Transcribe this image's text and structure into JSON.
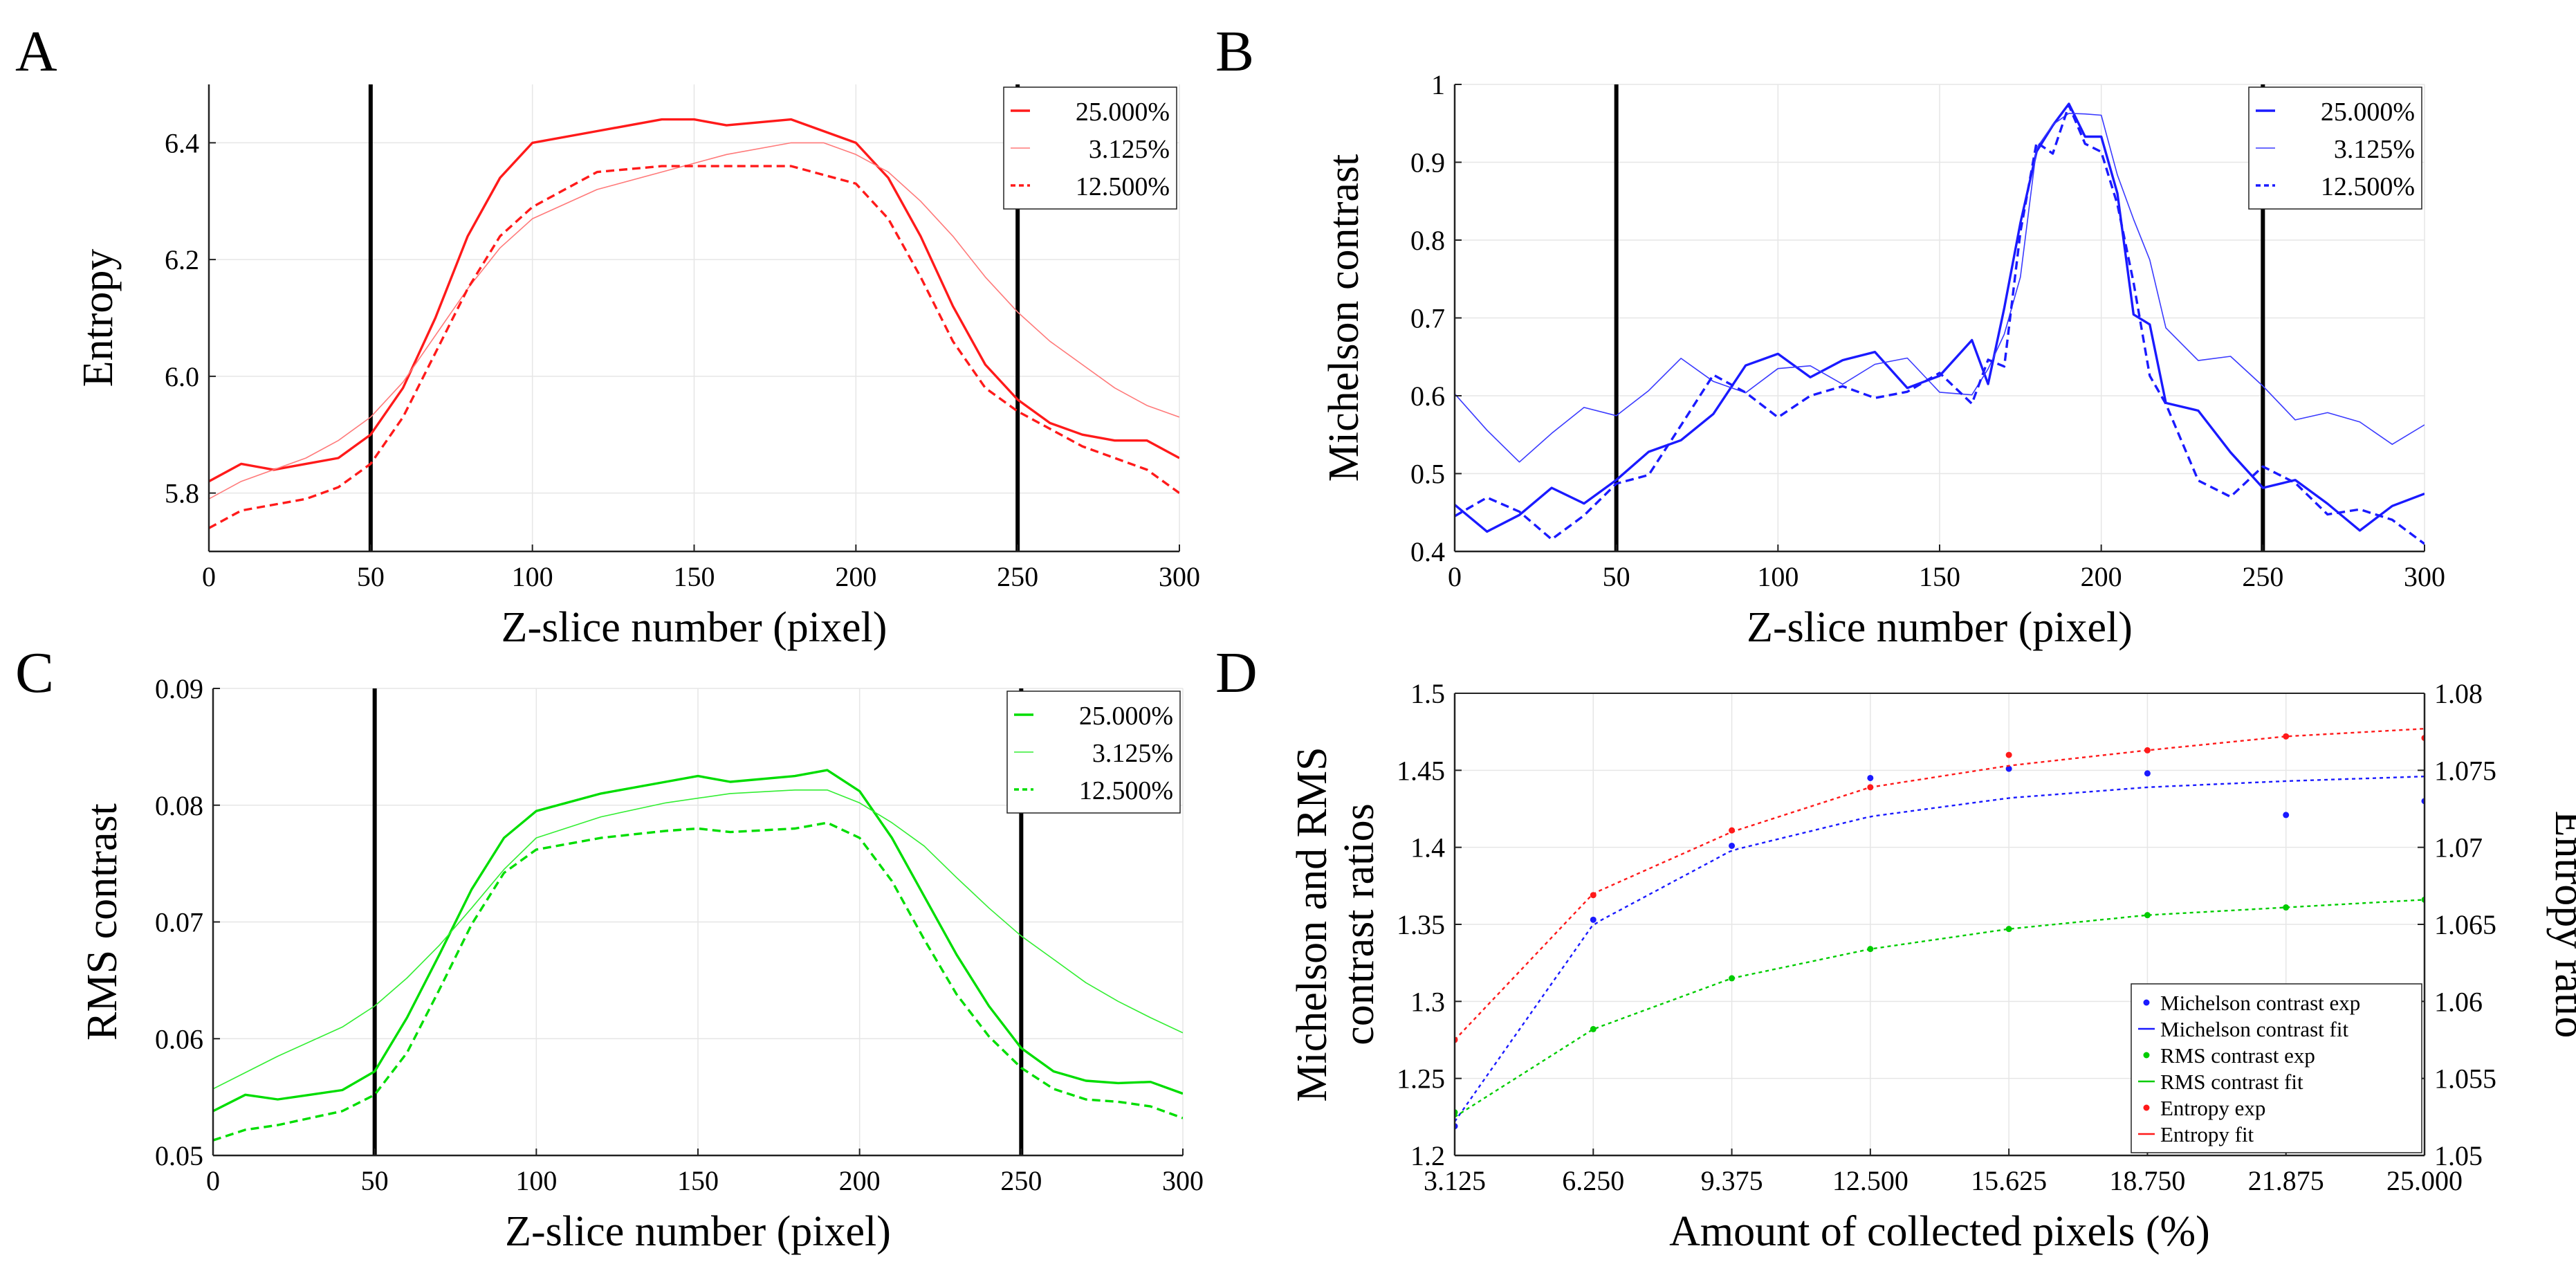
{
  "chart_data": [
    {
      "panel": "A",
      "type": "line",
      "xlabel": "Z-slice number (pixel)",
      "ylabel": "Entropy",
      "xlim": [
        0,
        300
      ],
      "ylim": [
        5.7,
        6.5
      ],
      "xticks": [
        0,
        50,
        100,
        150,
        200,
        250,
        300
      ],
      "yticks": [
        5.8,
        6.0,
        6.2,
        6.4
      ],
      "ytick_labels": [
        "5.8",
        "6.0",
        "6.2",
        "6.4"
      ],
      "vlines": [
        50,
        250
      ],
      "grid": true,
      "legend_position": "top-right",
      "series": [
        {
          "name": "25.000%",
          "color": "#ff1a1a",
          "style": "solid",
          "x": [
            0,
            10,
            20,
            30,
            40,
            50,
            60,
            70,
            80,
            90,
            100,
            120,
            140,
            150,
            160,
            180,
            200,
            210,
            220,
            230,
            240,
            250,
            260,
            270,
            280,
            290,
            300
          ],
          "values": [
            5.82,
            5.85,
            5.84,
            5.85,
            5.86,
            5.9,
            5.98,
            6.1,
            6.24,
            6.34,
            6.4,
            6.42,
            6.44,
            6.44,
            6.43,
            6.44,
            6.4,
            6.34,
            6.24,
            6.12,
            6.02,
            5.96,
            5.92,
            5.9,
            5.89,
            5.89,
            5.86
          ]
        },
        {
          "name": "3.125%",
          "color": "#ff7a7a",
          "style": "thin",
          "x": [
            0,
            10,
            20,
            30,
            40,
            50,
            60,
            70,
            80,
            90,
            100,
            120,
            140,
            160,
            180,
            190,
            200,
            210,
            220,
            230,
            240,
            250,
            260,
            270,
            280,
            290,
            300
          ],
          "values": [
            5.79,
            5.82,
            5.84,
            5.86,
            5.89,
            5.93,
            5.99,
            6.07,
            6.15,
            6.22,
            6.27,
            6.32,
            6.35,
            6.38,
            6.4,
            6.4,
            6.38,
            6.35,
            6.3,
            6.24,
            6.17,
            6.11,
            6.06,
            6.02,
            5.98,
            5.95,
            5.93
          ]
        },
        {
          "name": "12.500%",
          "color": "#ff1a1a",
          "style": "dashed",
          "x": [
            0,
            10,
            20,
            30,
            40,
            50,
            60,
            70,
            80,
            90,
            100,
            110,
            120,
            140,
            160,
            180,
            200,
            210,
            220,
            230,
            240,
            250,
            260,
            270,
            280,
            290,
            300
          ],
          "values": [
            5.74,
            5.77,
            5.78,
            5.79,
            5.81,
            5.85,
            5.93,
            6.04,
            6.15,
            6.24,
            6.29,
            6.32,
            6.35,
            6.36,
            6.36,
            6.36,
            6.33,
            6.27,
            6.17,
            6.06,
            5.98,
            5.94,
            5.91,
            5.88,
            5.86,
            5.84,
            5.8
          ]
        }
      ]
    },
    {
      "panel": "B",
      "type": "line",
      "xlabel": "Z-slice number (pixel)",
      "ylabel": "Michelson contrast",
      "xlim": [
        0,
        300
      ],
      "ylim": [
        0.4,
        1.0
      ],
      "xticks": [
        0,
        50,
        100,
        150,
        200,
        250,
        300
      ],
      "yticks": [
        0.4,
        0.5,
        0.6,
        0.7,
        0.8,
        0.9,
        1.0
      ],
      "ytick_labels": [
        "0.4",
        "0.5",
        "0.6",
        "0.7",
        "0.8",
        "0.9",
        "1"
      ],
      "vlines": [
        50,
        250
      ],
      "grid": true,
      "legend_position": "top-right",
      "series": [
        {
          "name": "25.000%",
          "color": "#1a1aff",
          "style": "solid",
          "x": [
            0,
            10,
            20,
            30,
            40,
            50,
            60,
            70,
            80,
            90,
            100,
            110,
            120,
            130,
            140,
            150,
            160,
            165,
            170,
            175,
            180,
            185,
            190,
            195,
            200,
            205,
            210,
            215,
            220,
            230,
            240,
            250,
            260,
            270,
            280,
            290,
            300
          ],
          "values": [
            0.46,
            0.46,
            0.45,
            0.47,
            0.47,
            0.48,
            0.5,
            0.56,
            0.61,
            0.63,
            0.64,
            0.63,
            0.63,
            0.64,
            0.64,
            0.65,
            0.65,
            0.64,
            0.7,
            0.82,
            0.92,
            0.95,
            0.96,
            0.95,
            0.93,
            0.84,
            0.74,
            0.66,
            0.6,
            0.55,
            0.52,
            0.49,
            0.48,
            0.47,
            0.46,
            0.45,
            0.44
          ]
        },
        {
          "name": "3.125%",
          "color": "#3a3aff",
          "style": "thin",
          "x": [
            0,
            10,
            20,
            30,
            40,
            50,
            60,
            70,
            80,
            90,
            100,
            110,
            120,
            130,
            140,
            150,
            160,
            165,
            170,
            175,
            180,
            185,
            190,
            195,
            200,
            205,
            210,
            215,
            220,
            230,
            240,
            250,
            260,
            270,
            280,
            290,
            300
          ],
          "values": [
            0.57,
            0.55,
            0.55,
            0.56,
            0.57,
            0.58,
            0.6,
            0.62,
            0.63,
            0.64,
            0.63,
            0.62,
            0.62,
            0.63,
            0.63,
            0.63,
            0.63,
            0.63,
            0.66,
            0.78,
            0.9,
            0.95,
            0.97,
            0.96,
            0.95,
            0.9,
            0.82,
            0.76,
            0.72,
            0.66,
            0.62,
            0.6,
            0.58,
            0.57,
            0.57,
            0.57,
            0.56
          ]
        },
        {
          "name": "12.500%",
          "color": "#1a1aff",
          "style": "dashed",
          "x": [
            0,
            10,
            20,
            30,
            40,
            50,
            60,
            70,
            80,
            90,
            100,
            110,
            120,
            130,
            140,
            150,
            160,
            165,
            170,
            175,
            180,
            185,
            190,
            195,
            200,
            205,
            210,
            215,
            220,
            230,
            240,
            250,
            260,
            270,
            280,
            290,
            300
          ],
          "values": [
            0.45,
            0.44,
            0.44,
            0.45,
            0.46,
            0.47,
            0.5,
            0.56,
            0.6,
            0.61,
            0.61,
            0.6,
            0.59,
            0.6,
            0.6,
            0.61,
            0.61,
            0.61,
            0.67,
            0.8,
            0.91,
            0.94,
            0.95,
            0.93,
            0.92,
            0.84,
            0.74,
            0.64,
            0.58,
            0.52,
            0.49,
            0.48,
            0.47,
            0.46,
            0.45,
            0.44,
            0.44
          ]
        }
      ]
    },
    {
      "panel": "C",
      "type": "line",
      "xlabel": "Z-slice number (pixel)",
      "ylabel": "RMS contrast",
      "xlim": [
        0,
        300
      ],
      "ylim": [
        0.05,
        0.09
      ],
      "xticks": [
        0,
        50,
        100,
        150,
        200,
        250,
        300
      ],
      "yticks": [
        0.05,
        0.06,
        0.07,
        0.08,
        0.09
      ],
      "ytick_labels": [
        "0.05",
        "0.06",
        "0.07",
        "0.08",
        "0.09"
      ],
      "vlines": [
        50,
        250
      ],
      "grid": true,
      "legend_position": "top-right",
      "series": [
        {
          "name": "25.000%",
          "color": "#00dd00",
          "style": "solid",
          "x": [
            0,
            10,
            20,
            30,
            40,
            50,
            60,
            70,
            80,
            90,
            100,
            120,
            140,
            150,
            160,
            180,
            190,
            200,
            210,
            220,
            230,
            240,
            250,
            260,
            270,
            280,
            290,
            300
          ],
          "values": [
            0.0538,
            0.0552,
            0.0548,
            0.0552,
            0.0556,
            0.0572,
            0.0618,
            0.0672,
            0.0728,
            0.0772,
            0.0795,
            0.081,
            0.082,
            0.0825,
            0.082,
            0.0825,
            0.083,
            0.0812,
            0.0772,
            0.0722,
            0.0672,
            0.0628,
            0.0592,
            0.0572,
            0.0564,
            0.0562,
            0.0563,
            0.0553
          ]
        },
        {
          "name": "3.125%",
          "color": "#33ee33",
          "style": "thin",
          "x": [
            0,
            20,
            40,
            50,
            60,
            70,
            80,
            90,
            100,
            120,
            140,
            160,
            180,
            190,
            200,
            210,
            220,
            230,
            240,
            250,
            260,
            270,
            280,
            290,
            300
          ],
          "values": [
            0.0557,
            0.0585,
            0.061,
            0.0628,
            0.0652,
            0.068,
            0.0712,
            0.0745,
            0.0772,
            0.079,
            0.0802,
            0.081,
            0.0813,
            0.0813,
            0.0802,
            0.0785,
            0.0765,
            0.0738,
            0.0712,
            0.0688,
            0.0668,
            0.0648,
            0.0632,
            0.0618,
            0.0605
          ]
        },
        {
          "name": "12.500%",
          "color": "#00dd00",
          "style": "dashed",
          "x": [
            0,
            10,
            20,
            30,
            40,
            50,
            60,
            70,
            80,
            90,
            100,
            120,
            140,
            150,
            160,
            180,
            190,
            200,
            210,
            220,
            230,
            240,
            250,
            260,
            270,
            280,
            290,
            300
          ],
          "values": [
            0.0513,
            0.0522,
            0.0526,
            0.0532,
            0.0538,
            0.0552,
            0.0588,
            0.0642,
            0.0698,
            0.0742,
            0.0762,
            0.0772,
            0.0778,
            0.078,
            0.0777,
            0.078,
            0.0785,
            0.0772,
            0.0735,
            0.0685,
            0.0638,
            0.0602,
            0.0575,
            0.0557,
            0.0548,
            0.0546,
            0.0542,
            0.0532
          ]
        }
      ]
    },
    {
      "panel": "D",
      "type": "scatter",
      "xlabel": "Amount of collected pixels (%)",
      "ylabel": "Michelson and RMS\ncontrast ratios",
      "ylabel_lines": [
        "Michelson and RMS",
        "contrast ratios"
      ],
      "ylabel_right": "Entropy ratio",
      "categories": [
        "3.125",
        "6.250",
        "9.375",
        "12.500",
        "15.625",
        "18.750",
        "21.875",
        "25.000"
      ],
      "x": [
        3.125,
        6.25,
        9.375,
        12.5,
        15.625,
        18.75,
        21.875,
        25.0
      ],
      "xlim": [
        3.125,
        25.0
      ],
      "ylim": [
        1.2,
        1.5
      ],
      "ylim_right": [
        1.05,
        1.08
      ],
      "yticks": [
        1.2,
        1.25,
        1.3,
        1.35,
        1.4,
        1.45,
        1.5
      ],
      "ytick_labels": [
        "1.2",
        "1.25",
        "1.3",
        "1.35",
        "1.4",
        "1.45",
        "1.5"
      ],
      "yticks_right": [
        1.05,
        1.055,
        1.06,
        1.065,
        1.07,
        1.075,
        1.08
      ],
      "ytick_labels_right": [
        "1.05",
        "1.055",
        "1.06",
        "1.065",
        "1.07",
        "1.075",
        "1.08"
      ],
      "grid": true,
      "legend_position": "bottom-right",
      "series": [
        {
          "name": "Michelson contrast exp",
          "kind": "points",
          "axis": "left",
          "color": "#1a1aff",
          "values": [
            1.219,
            1.353,
            1.401,
            1.445,
            1.451,
            1.448,
            1.421,
            1.43
          ]
        },
        {
          "name": "Michelson contrast fit",
          "kind": "line",
          "axis": "left",
          "color": "#1a1aff",
          "values": [
            1.222,
            1.35,
            1.398,
            1.42,
            1.432,
            1.439,
            1.443,
            1.446
          ]
        },
        {
          "name": "RMS contrast exp",
          "kind": "points",
          "axis": "left",
          "color": "#00cc00",
          "values": [
            1.228,
            1.282,
            1.315,
            1.334,
            1.347,
            1.356,
            1.361,
            1.366
          ]
        },
        {
          "name": "RMS contrast fit",
          "kind": "line",
          "axis": "left",
          "color": "#00cc00",
          "values": [
            1.225,
            1.282,
            1.315,
            1.334,
            1.347,
            1.356,
            1.361,
            1.366
          ]
        },
        {
          "name": "Entropy exp",
          "kind": "points",
          "axis": "right",
          "color": "#ff1a1a",
          "values": [
            1.0575,
            1.0669,
            1.0711,
            1.0739,
            1.076,
            1.0763,
            1.0772,
            1.0771
          ]
        },
        {
          "name": "Entropy fit",
          "kind": "line",
          "axis": "right",
          "color": "#ff1a1a",
          "values": [
            1.0575,
            1.067,
            1.071,
            1.0739,
            1.0753,
            1.0763,
            1.0772,
            1.0777
          ]
        }
      ]
    }
  ]
}
